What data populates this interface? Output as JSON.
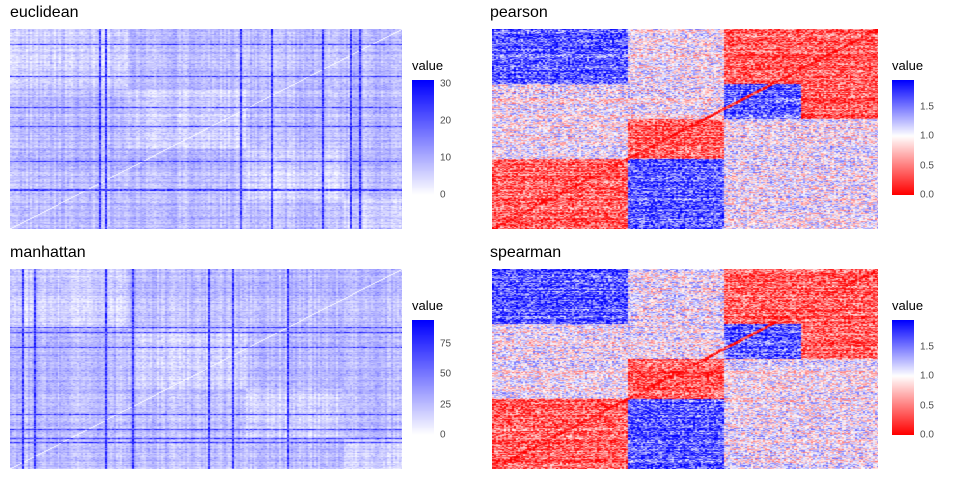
{
  "chart_data": [
    {
      "type": "heatmap",
      "title": "euclidean",
      "legend_title": "value",
      "colors": {
        "low": "#ff0000",
        "mid": "#ffffff",
        "high": "#0000ff"
      },
      "value_range": [
        0,
        31
      ],
      "midpoint": 0,
      "legend_ticks": [
        0,
        10,
        20,
        30
      ]
    },
    {
      "type": "heatmap",
      "title": "pearson",
      "legend_title": "value",
      "colors": {
        "low": "#ff0000",
        "mid": "#ffffff",
        "high": "#0000ff"
      },
      "value_range": [
        0,
        1.95
      ],
      "midpoint": 1.0,
      "legend_ticks": [
        0.0,
        0.5,
        1.0,
        1.5
      ],
      "legend_tick_labels": [
        "0.0",
        "0.5",
        "1.0",
        "1.5"
      ]
    },
    {
      "type": "heatmap",
      "title": "manhattan",
      "legend_title": "value",
      "colors": {
        "low": "#ff0000",
        "mid": "#ffffff",
        "high": "#0000ff"
      },
      "value_range": [
        0,
        95
      ],
      "midpoint": 0,
      "legend_ticks": [
        0,
        25,
        50,
        75
      ]
    },
    {
      "type": "heatmap",
      "title": "spearman",
      "legend_title": "value",
      "colors": {
        "low": "#ff0000",
        "mid": "#ffffff",
        "high": "#0000ff"
      },
      "value_range": [
        0,
        1.95
      ],
      "midpoint": 1.0,
      "legend_ticks": [
        0.0,
        0.5,
        1.0,
        1.5
      ],
      "legend_tick_labels": [
        "0.0",
        "0.5",
        "1.0",
        "1.5"
      ]
    }
  ]
}
